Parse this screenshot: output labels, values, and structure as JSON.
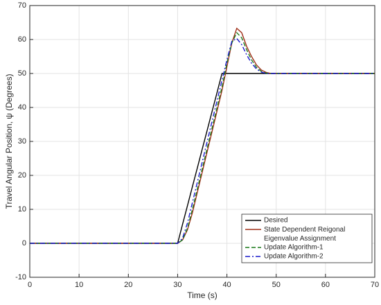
{
  "chart_data": {
    "type": "line",
    "xlabel": "Time (s)",
    "ylabel": "Travel Angular Position, ψ (Degrees)",
    "x": [
      0,
      30,
      31,
      32,
      33,
      34,
      35,
      36,
      37,
      38,
      39,
      40,
      41,
      42,
      43,
      44,
      45,
      46,
      47,
      48,
      49,
      50,
      55,
      60,
      70
    ],
    "series": [
      {
        "name": "Desired",
        "color": "#000000",
        "style": "solid",
        "values": [
          0,
          0,
          5.6,
          11.1,
          16.7,
          22.2,
          27.8,
          33.3,
          38.9,
          44.4,
          50,
          50,
          50,
          50,
          50,
          50,
          50,
          50,
          50,
          50,
          50,
          50,
          50,
          50,
          50
        ]
      },
      {
        "name": "State Dependent Reigonal Eigenvalue Assignment",
        "color": "#a0301a",
        "style": "solid",
        "values": [
          0,
          0,
          1,
          4,
          9,
          15,
          21,
          27,
          33,
          39,
          45,
          52,
          59,
          63.3,
          62,
          58,
          55,
          52.5,
          51,
          50.3,
          50,
          50,
          50,
          50,
          50
        ]
      },
      {
        "name": "Update Algorithm-1",
        "color": "#1a7a1a",
        "style": "dashed",
        "values": [
          0,
          0,
          1,
          4.5,
          10,
          16,
          22,
          28,
          34,
          40,
          46,
          53,
          59,
          62,
          60.5,
          57,
          54,
          51.8,
          50.6,
          50.1,
          50,
          50,
          50,
          50,
          50
        ]
      },
      {
        "name": "Update Algorithm-2",
        "color": "#1a1acc",
        "style": "dashdot",
        "values": [
          0,
          0,
          1.5,
          6,
          12,
          18,
          24,
          30,
          36,
          42,
          48,
          54,
          59.5,
          60.3,
          58.5,
          55.5,
          53,
          51.3,
          50.4,
          50,
          50,
          50,
          50,
          50,
          50
        ]
      }
    ],
    "xlim": [
      0,
      70
    ],
    "xticks": [
      0,
      10,
      20,
      30,
      40,
      50,
      60,
      70
    ],
    "ylim": [
      -10,
      70
    ],
    "yticks": [
      -10,
      0,
      10,
      20,
      30,
      40,
      50,
      60,
      70
    ],
    "grid": true,
    "legend": "lower right"
  }
}
